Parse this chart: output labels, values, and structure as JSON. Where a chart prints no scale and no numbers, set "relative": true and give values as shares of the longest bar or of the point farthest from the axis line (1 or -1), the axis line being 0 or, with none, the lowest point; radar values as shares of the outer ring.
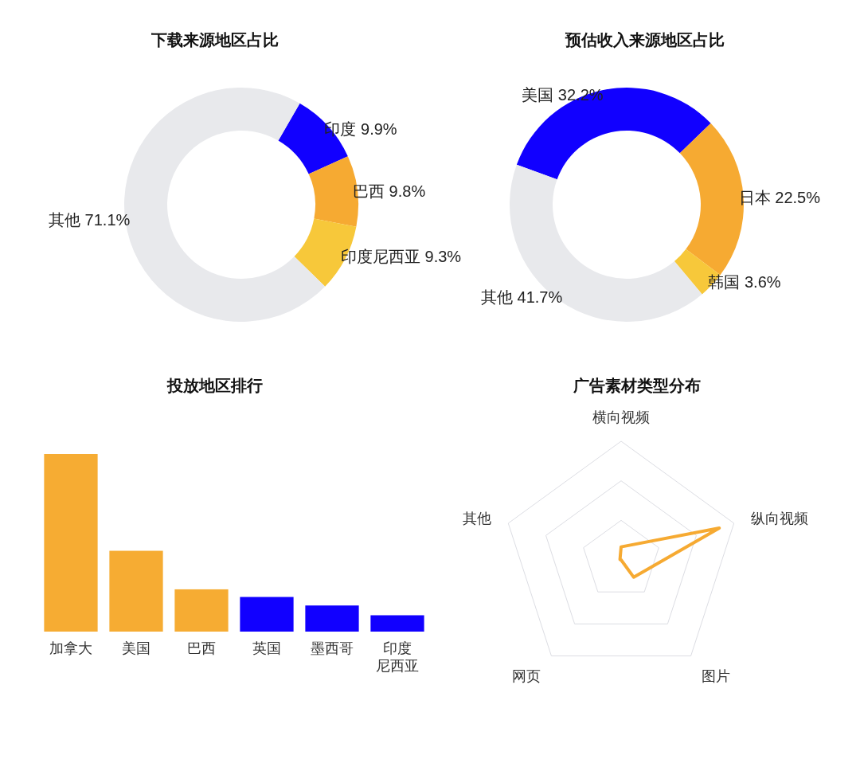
{
  "chart_data": [
    {
      "type": "donut",
      "title": "下载来源地区占比",
      "categories": [
        "印度",
        "巴西",
        "印度尼西亚",
        "其他"
      ],
      "values": [
        9.9,
        9.8,
        9.3,
        71.1
      ],
      "colors": [
        "#1100ff",
        "#f6aa32",
        "#f7c83a",
        "#e8e9ec"
      ],
      "value_labels": [
        "9.9%",
        "9.8%",
        "9.3%",
        "71.1%"
      ]
    },
    {
      "type": "donut",
      "title": "预估收入来源地区占比",
      "categories": [
        "美国",
        "日本",
        "韩国",
        "其他"
      ],
      "values": [
        32.2,
        22.5,
        3.6,
        41.7
      ],
      "colors": [
        "#1100ff",
        "#f6aa32",
        "#f7c83a",
        "#e8e9ec"
      ],
      "value_labels": [
        "32.2%",
        "22.5%",
        "3.6%",
        "41.7%"
      ]
    },
    {
      "type": "bar",
      "title": "投放地区排行",
      "categories": [
        "加拿大",
        "美国",
        "巴西",
        "英国",
        "墨西哥",
        "印度尼西亚"
      ],
      "values": [
        1,
        0.455,
        0.238,
        0.195,
        0.147,
        0.092
      ],
      "colors": [
        "#f6ac33",
        "#f6ac33",
        "#f6ac33",
        "#1100ff",
        "#1100ff",
        "#1100ff"
      ],
      "relative": true
    },
    {
      "type": "radar",
      "title": "广告素材类型分布",
      "categories": [
        "横向视频",
        "纵向视频",
        "图片",
        "网页",
        "其他"
      ],
      "relative": true,
      "series": [
        {
          "color": "#f6aa32",
          "values": [
            0.11,
            0.87,
            0.18,
            0,
            0.01
          ]
        }
      ]
    }
  ]
}
